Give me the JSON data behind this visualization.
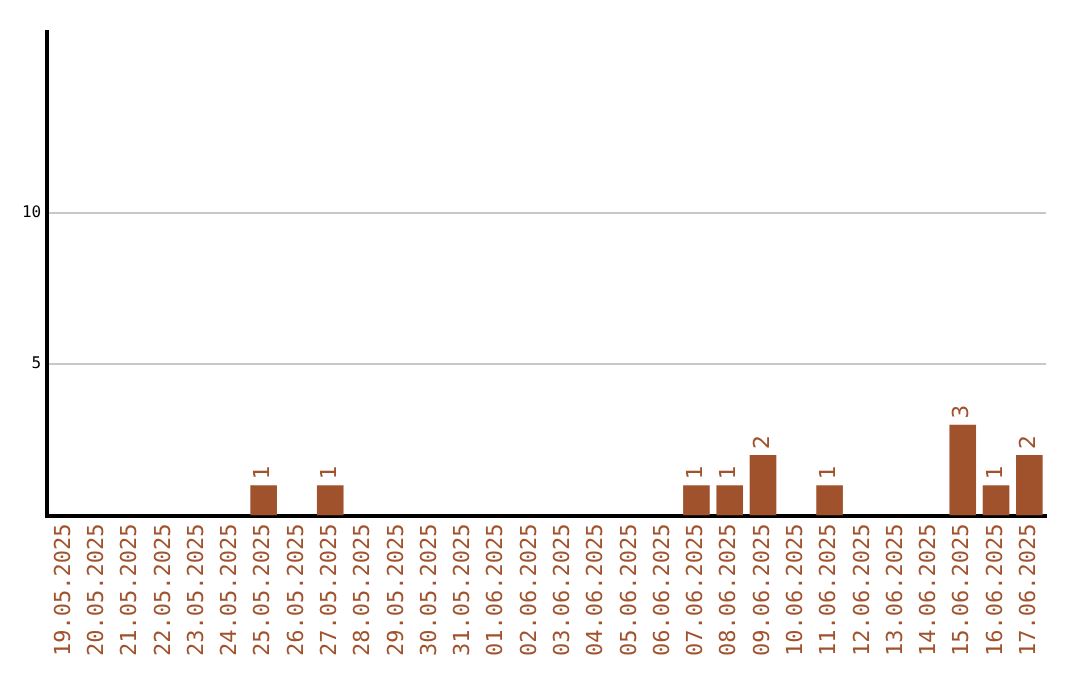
{
  "chart_data": {
    "type": "bar",
    "categories": [
      "19.05.2025",
      "20.05.2025",
      "21.05.2025",
      "22.05.2025",
      "23.05.2025",
      "24.05.2025",
      "25.05.2025",
      "26.05.2025",
      "27.05.2025",
      "28.05.2025",
      "29.05.2025",
      "30.05.2025",
      "31.05.2025",
      "01.06.2025",
      "02.06.2025",
      "03.06.2025",
      "04.06.2025",
      "05.06.2025",
      "06.06.2025",
      "07.06.2025",
      "08.06.2025",
      "09.06.2025",
      "10.06.2025",
      "11.06.2025",
      "12.06.2025",
      "13.06.2025",
      "14.06.2025",
      "15.06.2025",
      "16.06.2025",
      "17.06.2025"
    ],
    "values": [
      0,
      0,
      0,
      0,
      0,
      0,
      1,
      0,
      1,
      0,
      0,
      0,
      0,
      0,
      0,
      0,
      0,
      0,
      0,
      1,
      1,
      2,
      0,
      1,
      0,
      0,
      0,
      3,
      1,
      2
    ],
    "value_labels": [
      null,
      null,
      null,
      null,
      null,
      null,
      "1",
      null,
      "1",
      null,
      null,
      null,
      null,
      null,
      null,
      null,
      null,
      null,
      null,
      "1",
      "1",
      "2",
      null,
      "1",
      null,
      null,
      null,
      "3",
      "1",
      "2"
    ],
    "color": "#a0522d",
    "ylim": [
      0,
      16
    ],
    "yticks": [
      5,
      10
    ],
    "grid": "y",
    "legend": false
  }
}
